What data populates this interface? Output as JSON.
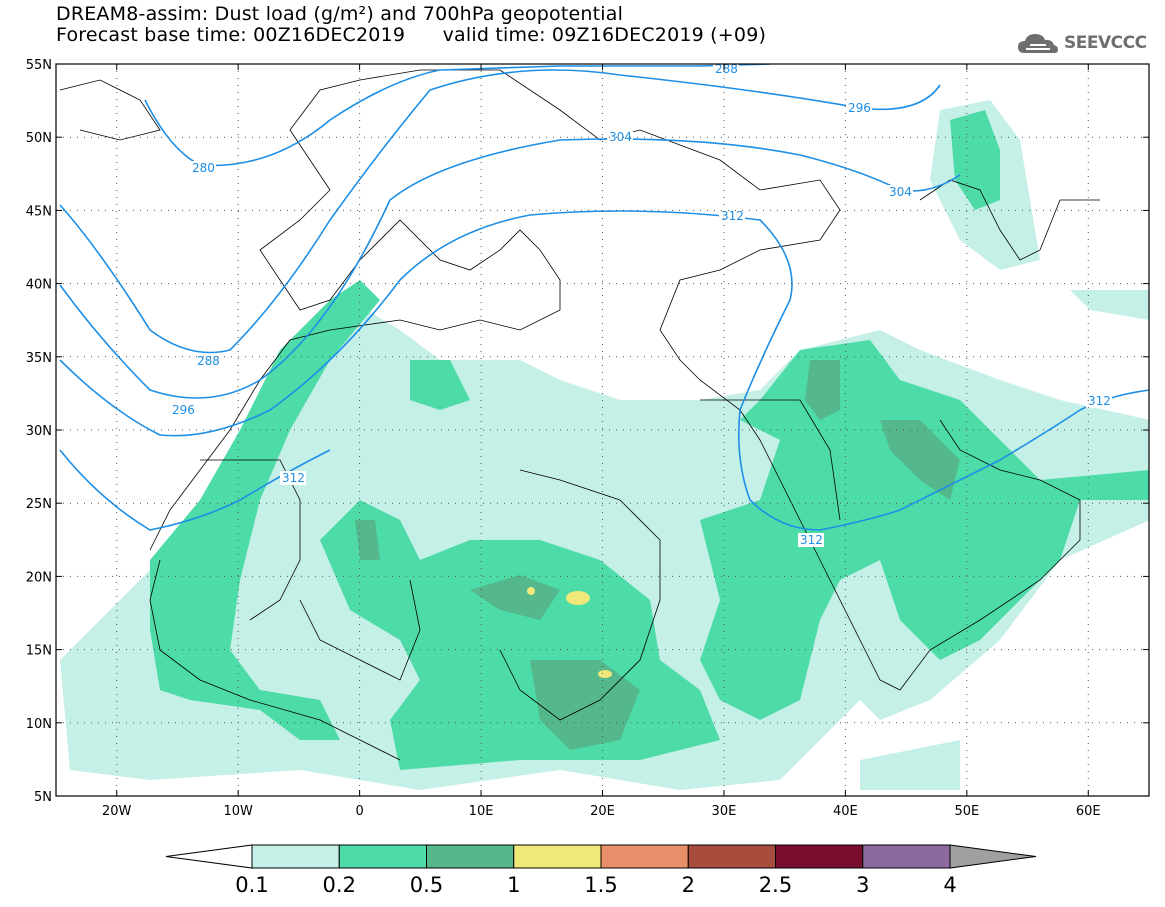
{
  "title": {
    "line1": "DREAM8-assim: Dust load (g/m²) and 700hPa geopotential",
    "line2_left": "Forecast base time: 00Z16DEC2019",
    "line2_right": "valid time: 09Z16DEC2019 (+09)"
  },
  "logo": {
    "text": "SEEVCCC",
    "icon": "cloud-logo-icon"
  },
  "map": {
    "lat_labels": [
      "55N",
      "50N",
      "45N",
      "40N",
      "35N",
      "30N",
      "25N",
      "20N",
      "15N",
      "10N",
      "5N"
    ],
    "lon_labels": [
      "20W",
      "10W",
      "0",
      "10E",
      "20E",
      "30E",
      "40E",
      "50E",
      "60E"
    ],
    "contour_labels": [
      "288",
      "296",
      "280",
      "304",
      "312",
      "288",
      "296",
      "304",
      "312",
      "312",
      "312"
    ],
    "contour_color": "#1e8fe6"
  },
  "colorbar": {
    "labels": [
      "0.1",
      "0.2",
      "0.5",
      "1",
      "1.5",
      "2",
      "2.5",
      "3",
      "4"
    ],
    "colors": [
      "#ffffff",
      "#c4f0e8",
      "#4ddba8",
      "#55b78c",
      "#f0e878",
      "#e8906a",
      "#a84c3e",
      "#7a0e2e",
      "#8c6aa0",
      "#a0a0a0"
    ]
  }
}
